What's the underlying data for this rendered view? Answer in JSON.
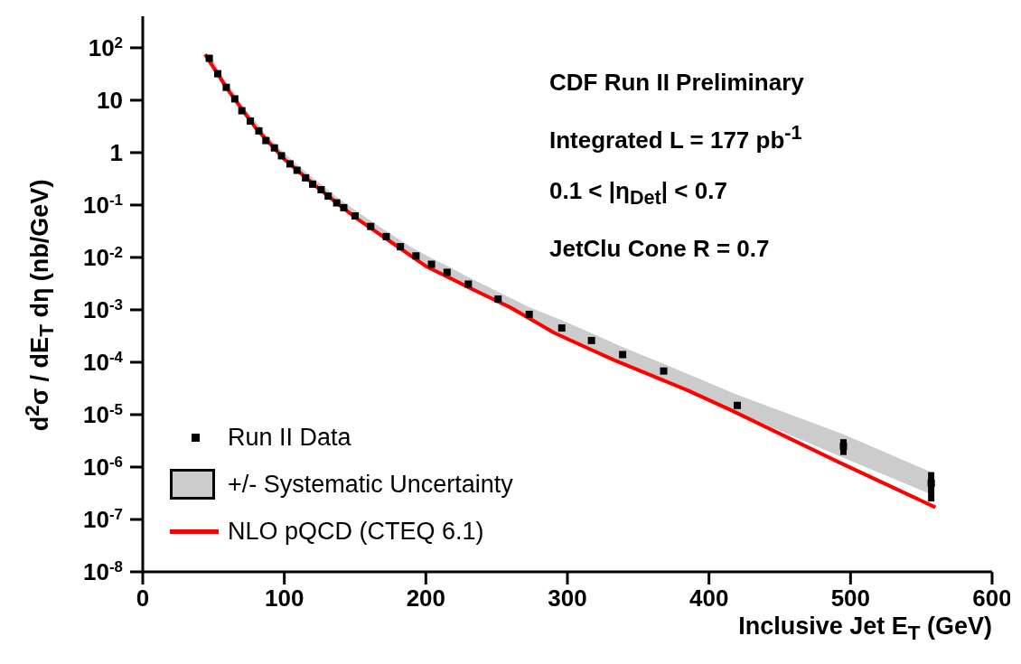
{
  "chart_data": {
    "type": "scatter",
    "xlabel": "Inclusive Jet E$_{T}$ (GeV)",
    "ylabel": "d$^{2}$σ / dE$_{T}$ dη (nb/GeV)",
    "annotations": [
      "CDF Run II Preliminary",
      "Integrated L = 177 pb$^{-1}$",
      "0.1 < |η$_{Det}$| < 0.7",
      "JetClu Cone R = 0.7",
      "+/- Systematic Uncertainty"
    ],
    "log": "y",
    "grid": false,
    "legend": "bottom left",
    "xlim": [
      0,
      600
    ],
    "xticks": [
      0,
      100,
      200,
      300,
      400,
      500,
      600
    ],
    "ylim": [
      1e-08,
      400
    ],
    "yticks": [
      {
        "value": 1e-08,
        "label": "10$^{-8}$"
      },
      {
        "value": 1e-07,
        "label": "10$^{-7}$"
      },
      {
        "value": 1e-06,
        "label": "10$^{-6}$"
      },
      {
        "value": 1e-05,
        "label": "10$^{-5}$"
      },
      {
        "value": 0.0001,
        "label": "10$^{-4}$"
      },
      {
        "value": 0.001,
        "label": "10$^{-3}$"
      },
      {
        "value": 0.01,
        "label": "10$^{-2}$"
      },
      {
        "value": 0.1,
        "label": "10$^{-1}$"
      },
      1,
      10,
      {
        "value": 100,
        "label": "10$^{2}$"
      }
    ],
    "series": [
      {
        "name": "Run II Data",
        "color": "#000000",
        "marker": "square",
        "x": [
          47,
          53,
          59,
          65,
          70,
          76,
          82,
          87,
          93,
          98,
          104,
          109,
          115,
          120,
          126,
          131,
          137,
          142,
          150,
          161,
          172,
          182,
          193,
          204,
          215,
          230,
          251,
          273,
          296,
          317,
          339,
          368,
          420,
          495,
          557
        ],
        "values": [
          63,
          32,
          17.6,
          10.6,
          6.3,
          4.0,
          2.6,
          1.7,
          1.23,
          0.87,
          0.61,
          0.46,
          0.33,
          0.25,
          0.196,
          0.148,
          0.11,
          0.089,
          0.062,
          0.039,
          0.025,
          0.016,
          0.0107,
          0.0074,
          0.0052,
          0.0031,
          0.0016,
          0.00082,
          0.00045,
          0.00026,
          0.00014,
          6.8e-05,
          1.5e-05,
          2.5e-06,
          4.9e-07
        ],
        "errors": [
          null,
          null,
          null,
          null,
          null,
          null,
          null,
          null,
          null,
          null,
          null,
          null,
          null,
          null,
          null,
          null,
          null,
          null,
          null,
          null,
          null,
          null,
          null,
          null,
          null,
          null,
          null,
          null,
          null,
          null,
          null,
          null,
          null,
          [
            1.7e-06,
            3.4e-06
          ],
          [
            2.2e-07,
            8e-07
          ]
        ],
        "lower": [
          58,
          29,
          16,
          9.6,
          5.7,
          3.6,
          2.35,
          1.55,
          1.1,
          0.78,
          0.55,
          0.41,
          0.3,
          0.225,
          0.175,
          0.13,
          0.098,
          0.078,
          0.055,
          0.034,
          0.021,
          0.0135,
          0.009,
          0.0061,
          0.0043,
          0.0025,
          0.0013,
          0.00064,
          0.00033,
          0.00019,
          9.5e-05,
          4.5e-05,
          1.1e-05,
          1.5e-06,
          3e-07
        ],
        "upper": [
          80,
          40,
          22,
          13.3,
          8,
          5.1,
          3.3,
          2.15,
          1.55,
          1.1,
          0.78,
          0.59,
          0.43,
          0.33,
          0.25,
          0.19,
          0.142,
          0.114,
          0.08,
          0.05,
          0.032,
          0.021,
          0.014,
          0.0097,
          0.0069,
          0.0042,
          0.0022,
          0.00113,
          0.00063,
          0.00036,
          0.000195,
          9.3e-05,
          2.4e-05,
          4.2e-06,
          8e-07
        ]
      },
      {
        "type": "line",
        "name": "NLO pQCD (CTEQ 6.1)",
        "color": "#ff0000",
        "marker": "none",
        "x": [
          44,
          60,
          80,
          100,
          125,
          150,
          175,
          200,
          230,
          260,
          291,
          333,
          385,
          416,
          490,
          560
        ],
        "values": [
          75,
          16,
          2.9,
          0.75,
          0.2,
          0.058,
          0.02,
          0.0068,
          0.0027,
          0.0011,
          0.00036,
          0.00011,
          2.9e-05,
          1.2e-05,
          1.3e-06,
          1.7e-07
        ]
      }
    ]
  }
}
